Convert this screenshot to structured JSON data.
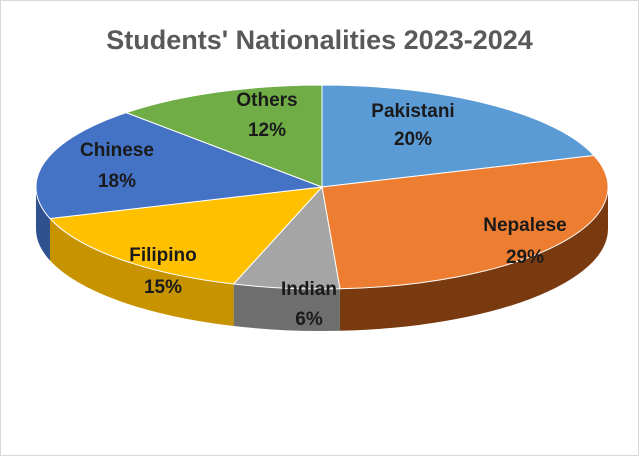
{
  "chart_data": {
    "type": "pie",
    "title": "Students' Nationalities 2023-2024",
    "slices": [
      {
        "label": "Pakistani",
        "value": 20,
        "value_label": "20%",
        "color": "#5B9BD5",
        "side_color": "#3E78B0"
      },
      {
        "label": "Nepalese",
        "value": 29,
        "value_label": "29%",
        "color": "#ED7D31",
        "side_color": "#7A3A10"
      },
      {
        "label": "Indian",
        "value": 6,
        "value_label": "6%",
        "color": "#A5A5A5",
        "side_color": "#6E6E6E"
      },
      {
        "label": "Filipino",
        "value": 15,
        "value_label": "15%",
        "color": "#FFC000",
        "side_color": "#C79400"
      },
      {
        "label": "Chinese",
        "value": 18,
        "value_label": "18%",
        "color": "#4472C4",
        "side_color": "#2F528F"
      },
      {
        "label": "Others",
        "value": 12,
        "value_label": "12%",
        "color": "#70AD47",
        "side_color": "#4E7A31"
      }
    ],
    "start_angle_deg": 0,
    "direction": "clockwise",
    "style": "3d",
    "legend": "none",
    "data_labels": "inside"
  }
}
